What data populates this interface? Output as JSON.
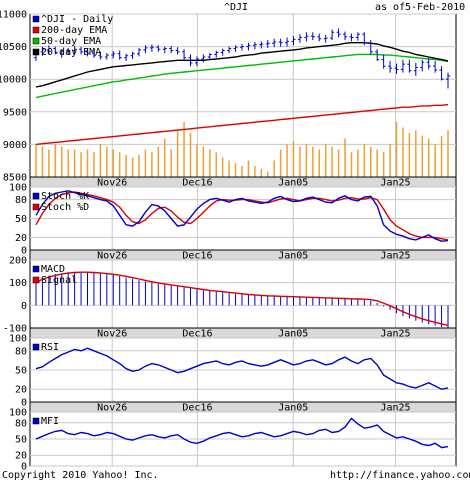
{
  "header": {
    "symbol": "^DJI",
    "as_of_label": "as of",
    "date": "5-Feb-2010"
  },
  "footer": {
    "copyright": "Copyright 2010 Yahoo! Inc.",
    "url": "http://finance.yahoo.com/"
  },
  "x_ticks": [
    "Nov26",
    "Dec16",
    "Jan05",
    "Jan25"
  ],
  "chart_data": [
    {
      "type": "line",
      "panel": "price",
      "ylim": [
        8500,
        11000
      ],
      "yticks": [
        "11000",
        "10500",
        "10000",
        "9500",
        "9000",
        "8500"
      ],
      "legend": [
        "^DJI - Daily",
        "200-day EMA",
        "50-day EMA",
        "20-day EMA"
      ],
      "colors": {
        "price": "#0000cc",
        "ema200": "#dd0000",
        "ema50": "#00bb00",
        "ema20": "#000000",
        "volume": "#f0a030"
      },
      "price": [
        {
          "o": 10330,
          "h": 10440,
          "l": 10280,
          "c": 10420
        },
        {
          "o": 10420,
          "h": 10500,
          "l": 10360,
          "c": 10450
        },
        {
          "o": 10450,
          "h": 10520,
          "l": 10380,
          "c": 10470
        },
        {
          "o": 10470,
          "h": 10500,
          "l": 10380,
          "c": 10400
        },
        {
          "o": 10400,
          "h": 10460,
          "l": 10330,
          "c": 10430
        },
        {
          "o": 10430,
          "h": 10480,
          "l": 10370,
          "c": 10440
        },
        {
          "o": 10440,
          "h": 10510,
          "l": 10380,
          "c": 10460
        },
        {
          "o": 10460,
          "h": 10500,
          "l": 10380,
          "c": 10420
        },
        {
          "o": 10420,
          "h": 10470,
          "l": 10350,
          "c": 10400
        },
        {
          "o": 10400,
          "h": 10450,
          "l": 10330,
          "c": 10360
        },
        {
          "o": 10360,
          "h": 10420,
          "l": 10300,
          "c": 10340
        },
        {
          "o": 10340,
          "h": 10400,
          "l": 10300,
          "c": 10370
        },
        {
          "o": 10370,
          "h": 10430,
          "l": 10320,
          "c": 10390
        },
        {
          "o": 10390,
          "h": 10440,
          "l": 10300,
          "c": 10330
        },
        {
          "o": 10330,
          "h": 10390,
          "l": 10280,
          "c": 10360
        },
        {
          "o": 10360,
          "h": 10420,
          "l": 10310,
          "c": 10390
        },
        {
          "o": 10390,
          "h": 10480,
          "l": 10350,
          "c": 10450
        },
        {
          "o": 10450,
          "h": 10520,
          "l": 10400,
          "c": 10480
        },
        {
          "o": 10480,
          "h": 10530,
          "l": 10420,
          "c": 10490
        },
        {
          "o": 10490,
          "h": 10520,
          "l": 10420,
          "c": 10460
        },
        {
          "o": 10460,
          "h": 10500,
          "l": 10400,
          "c": 10470
        },
        {
          "o": 10470,
          "h": 10510,
          "l": 10400,
          "c": 10440
        },
        {
          "o": 10440,
          "h": 10490,
          "l": 10380,
          "c": 10420
        },
        {
          "o": 10420,
          "h": 10460,
          "l": 10300,
          "c": 10330
        },
        {
          "o": 10330,
          "h": 10380,
          "l": 10200,
          "c": 10250
        },
        {
          "o": 10250,
          "h": 10350,
          "l": 10200,
          "c": 10310
        },
        {
          "o": 10310,
          "h": 10380,
          "l": 10260,
          "c": 10340
        },
        {
          "o": 10340,
          "h": 10400,
          "l": 10300,
          "c": 10380
        },
        {
          "o": 10380,
          "h": 10440,
          "l": 10330,
          "c": 10410
        },
        {
          "o": 10410,
          "h": 10470,
          "l": 10360,
          "c": 10440
        },
        {
          "o": 10440,
          "h": 10500,
          "l": 10400,
          "c": 10470
        },
        {
          "o": 10470,
          "h": 10520,
          "l": 10420,
          "c": 10490
        },
        {
          "o": 10490,
          "h": 10540,
          "l": 10440,
          "c": 10500
        },
        {
          "o": 10500,
          "h": 10560,
          "l": 10440,
          "c": 10520
        },
        {
          "o": 10520,
          "h": 10570,
          "l": 10460,
          "c": 10530
        },
        {
          "o": 10530,
          "h": 10580,
          "l": 10470,
          "c": 10540
        },
        {
          "o": 10540,
          "h": 10600,
          "l": 10480,
          "c": 10550
        },
        {
          "o": 10550,
          "h": 10620,
          "l": 10490,
          "c": 10570
        },
        {
          "o": 10570,
          "h": 10620,
          "l": 10500,
          "c": 10560
        },
        {
          "o": 10560,
          "h": 10640,
          "l": 10500,
          "c": 10580
        },
        {
          "o": 10580,
          "h": 10660,
          "l": 10520,
          "c": 10610
        },
        {
          "o": 10610,
          "h": 10690,
          "l": 10560,
          "c": 10640
        },
        {
          "o": 10640,
          "h": 10720,
          "l": 10580,
          "c": 10660
        },
        {
          "o": 10660,
          "h": 10720,
          "l": 10600,
          "c": 10650
        },
        {
          "o": 10650,
          "h": 10700,
          "l": 10580,
          "c": 10620
        },
        {
          "o": 10620,
          "h": 10680,
          "l": 10560,
          "c": 10630
        },
        {
          "o": 10630,
          "h": 10760,
          "l": 10600,
          "c": 10720
        },
        {
          "o": 10720,
          "h": 10780,
          "l": 10640,
          "c": 10690
        },
        {
          "o": 10690,
          "h": 10730,
          "l": 10600,
          "c": 10650
        },
        {
          "o": 10650,
          "h": 10700,
          "l": 10580,
          "c": 10640
        },
        {
          "o": 10640,
          "h": 10720,
          "l": 10590,
          "c": 10690
        },
        {
          "o": 10690,
          "h": 10720,
          "l": 10520,
          "c": 10560
        },
        {
          "o": 10560,
          "h": 10600,
          "l": 10380,
          "c": 10420
        },
        {
          "o": 10420,
          "h": 10460,
          "l": 10280,
          "c": 10300
        },
        {
          "o": 10300,
          "h": 10380,
          "l": 10160,
          "c": 10200
        },
        {
          "o": 10200,
          "h": 10280,
          "l": 10100,
          "c": 10170
        },
        {
          "o": 10170,
          "h": 10240,
          "l": 10080,
          "c": 10150
        },
        {
          "o": 10150,
          "h": 10300,
          "l": 10100,
          "c": 10230
        },
        {
          "o": 10230,
          "h": 10300,
          "l": 10100,
          "c": 10130
        },
        {
          "o": 10130,
          "h": 10250,
          "l": 10050,
          "c": 10180
        },
        {
          "o": 10180,
          "h": 10300,
          "l": 10120,
          "c": 10260
        },
        {
          "o": 10260,
          "h": 10320,
          "l": 10150,
          "c": 10200
        },
        {
          "o": 10200,
          "h": 10280,
          "l": 10100,
          "c": 10140
        },
        {
          "o": 10140,
          "h": 10200,
          "l": 9980,
          "c": 10000
        },
        {
          "o": 10000,
          "h": 10100,
          "l": 9860,
          "c": 10050
        }
      ],
      "ema20": [
        9880,
        9900,
        9930,
        9960,
        9990,
        10020,
        10050,
        10080,
        10110,
        10130,
        10150,
        10170,
        10190,
        10200,
        10210,
        10220,
        10230,
        10240,
        10250,
        10260,
        10270,
        10280,
        10290,
        10290,
        10290,
        10290,
        10290,
        10300,
        10310,
        10320,
        10330,
        10340,
        10360,
        10370,
        10380,
        10400,
        10410,
        10420,
        10430,
        10440,
        10450,
        10460,
        10480,
        10490,
        10500,
        10510,
        10520,
        10530,
        10550,
        10560,
        10560,
        10560,
        10550,
        10540,
        10510,
        10490,
        10460,
        10430,
        10410,
        10380,
        10360,
        10340,
        10320,
        10300,
        10280
      ],
      "ema50": [
        9720,
        9740,
        9760,
        9780,
        9800,
        9820,
        9840,
        9860,
        9880,
        9900,
        9920,
        9940,
        9960,
        9970,
        9990,
        10000,
        10020,
        10030,
        10050,
        10060,
        10080,
        10090,
        10100,
        10110,
        10120,
        10130,
        10140,
        10150,
        10160,
        10170,
        10180,
        10190,
        10200,
        10210,
        10220,
        10230,
        10240,
        10250,
        10260,
        10270,
        10280,
        10290,
        10300,
        10310,
        10320,
        10330,
        10340,
        10350,
        10360,
        10370,
        10380,
        10380,
        10380,
        10380,
        10370,
        10370,
        10360,
        10350,
        10340,
        10330,
        10320,
        10310,
        10300,
        10290,
        10270
      ],
      "ema200": [
        9000,
        9010,
        9020,
        9030,
        9040,
        9050,
        9060,
        9070,
        9080,
        9090,
        9100,
        9110,
        9120,
        9130,
        9140,
        9150,
        9160,
        9170,
        9180,
        9190,
        9200,
        9210,
        9220,
        9230,
        9240,
        9250,
        9260,
        9270,
        9280,
        9290,
        9300,
        9310,
        9320,
        9330,
        9340,
        9350,
        9360,
        9370,
        9380,
        9390,
        9400,
        9410,
        9420,
        9430,
        9440,
        9450,
        9460,
        9470,
        9480,
        9490,
        9500,
        9510,
        9520,
        9530,
        9540,
        9550,
        9560,
        9570,
        9570,
        9580,
        9590,
        9590,
        9600,
        9600,
        9610
      ],
      "volume_level": [
        0.6,
        0.55,
        0.5,
        0.6,
        0.55,
        0.5,
        0.5,
        0.45,
        0.5,
        0.45,
        0.6,
        0.55,
        0.5,
        0.45,
        0.4,
        0.35,
        0.4,
        0.5,
        0.45,
        0.55,
        0.7,
        0.5,
        0.85,
        1.0,
        0.8,
        0.6,
        0.55,
        0.5,
        0.45,
        0.35,
        0.3,
        0.25,
        0.2,
        0.3,
        0.2,
        0.15,
        0.1,
        0.3,
        0.5,
        0.6,
        0.65,
        0.55,
        0.6,
        0.55,
        0.5,
        0.6,
        0.55,
        0.5,
        0.7,
        0.45,
        0.5,
        0.6,
        0.55,
        0.5,
        0.45,
        0.6,
        1.0,
        0.9,
        0.8,
        0.85,
        0.75,
        0.7,
        0.6,
        0.75,
        0.85
      ]
    },
    {
      "type": "line",
      "panel": "stochastic",
      "ylim": [
        0,
        100
      ],
      "yticks": [
        "100",
        "80",
        "50",
        "20",
        "0"
      ],
      "legend": [
        "Stoch %K",
        "Stoch %D"
      ],
      "colors": {
        "k": "#0000cc",
        "d": "#dd0000"
      },
      "k": [
        55,
        72,
        85,
        90,
        92,
        94,
        91,
        88,
        86,
        83,
        80,
        78,
        70,
        55,
        40,
        38,
        45,
        60,
        72,
        70,
        62,
        50,
        38,
        40,
        52,
        65,
        74,
        80,
        82,
        79,
        76,
        80,
        82,
        78,
        76,
        74,
        76,
        82,
        85,
        80,
        77,
        78,
        82,
        84,
        80,
        76,
        75,
        82,
        86,
        80,
        78,
        84,
        85,
        70,
        40,
        30,
        25,
        22,
        18,
        16,
        20,
        24,
        18,
        14,
        15
      ],
      "d": [
        40,
        58,
        72,
        82,
        88,
        91,
        92,
        90,
        88,
        86,
        83,
        80,
        76,
        68,
        55,
        45,
        42,
        48,
        58,
        66,
        68,
        62,
        52,
        44,
        42,
        50,
        60,
        70,
        78,
        80,
        79,
        79,
        80,
        80,
        78,
        76,
        75,
        78,
        81,
        82,
        80,
        78,
        80,
        82,
        82,
        80,
        78,
        79,
        82,
        83,
        81,
        81,
        83,
        80,
        65,
        48,
        38,
        32,
        26,
        22,
        20,
        20,
        20,
        18,
        16
      ]
    },
    {
      "type": "line",
      "panel": "macd",
      "ylim": [
        -100,
        200
      ],
      "yticks": [
        "200",
        "100",
        "0",
        "-100"
      ],
      "legend": [
        "MACD",
        "Signal"
      ],
      "colors": {
        "macd": "#0000cc",
        "signal": "#dd0000",
        "histogram": "#0000cc"
      },
      "signal": [
        100,
        115,
        125,
        132,
        138,
        142,
        145,
        146,
        146,
        145,
        143,
        140,
        137,
        133,
        128,
        122,
        116,
        110,
        104,
        99,
        94,
        90,
        86,
        82,
        78,
        74,
        70,
        66,
        63,
        60,
        57,
        54,
        51,
        48,
        46,
        44,
        42,
        41,
        40,
        39,
        38,
        37,
        36,
        35,
        34,
        33,
        32,
        31,
        30,
        29,
        28,
        27,
        25,
        20,
        10,
        -2,
        -15,
        -28,
        -40,
        -50,
        -60,
        -68,
        -75,
        -82,
        -88
      ],
      "macd": [
        105,
        120,
        130,
        138,
        142,
        146,
        148,
        148,
        147,
        145,
        142,
        138,
        134,
        129,
        123,
        117,
        111,
        105,
        100,
        95,
        91,
        87,
        83,
        79,
        75,
        71,
        67,
        63,
        60,
        57,
        54,
        51,
        48,
        46,
        44,
        42,
        40,
        39,
        38,
        37,
        36,
        35,
        34,
        33,
        32,
        31,
        30,
        29,
        28,
        27,
        26,
        24,
        20,
        10,
        -5,
        -20,
        -35,
        -48,
        -58,
        -68,
        -76,
        -84,
        -90,
        -96,
        -100
      ]
    },
    {
      "type": "line",
      "panel": "rsi",
      "ylim": [
        0,
        100
      ],
      "yticks": [
        "100",
        "80",
        "50",
        "20",
        "0"
      ],
      "legend": [
        "RSI"
      ],
      "colors": {
        "rsi": "#0000cc"
      },
      "values": [
        52,
        55,
        62,
        68,
        74,
        78,
        82,
        80,
        84,
        80,
        76,
        72,
        66,
        60,
        52,
        48,
        50,
        56,
        60,
        58,
        54,
        50,
        46,
        48,
        52,
        56,
        60,
        62,
        64,
        60,
        58,
        62,
        64,
        60,
        58,
        56,
        58,
        62,
        66,
        62,
        58,
        60,
        64,
        66,
        62,
        58,
        60,
        66,
        70,
        64,
        60,
        66,
        68,
        58,
        42,
        36,
        30,
        28,
        24,
        22,
        26,
        30,
        25,
        20,
        22
      ]
    },
    {
      "type": "line",
      "panel": "mfi",
      "ylim": [
        0,
        100
      ],
      "yticks": [
        "100",
        "80",
        "50",
        "20",
        "0"
      ],
      "legend": [
        "MFI"
      ],
      "colors": {
        "mfi": "#0000cc"
      },
      "values": [
        50,
        55,
        60,
        64,
        66,
        60,
        58,
        62,
        60,
        56,
        58,
        62,
        60,
        55,
        50,
        48,
        52,
        56,
        58,
        54,
        52,
        56,
        58,
        50,
        44,
        42,
        46,
        52,
        56,
        60,
        62,
        58,
        54,
        56,
        60,
        62,
        58,
        54,
        56,
        60,
        64,
        62,
        58,
        60,
        66,
        68,
        62,
        64,
        72,
        88,
        78,
        70,
        72,
        76,
        64,
        58,
        52,
        54,
        50,
        46,
        40,
        38,
        42,
        34,
        36
      ]
    }
  ]
}
